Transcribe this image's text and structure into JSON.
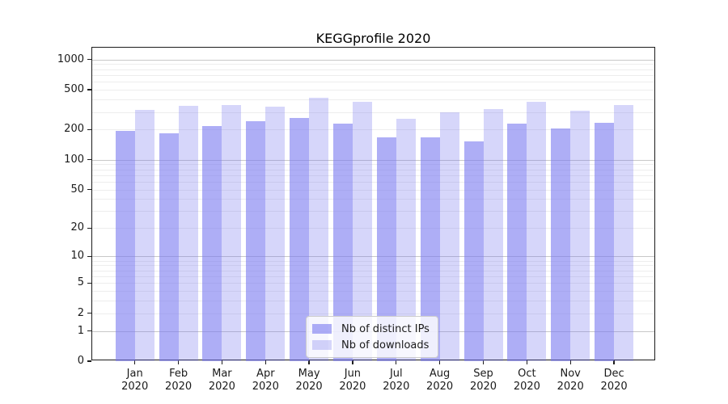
{
  "title": "KEGGprofile 2020",
  "chart_data": {
    "type": "bar",
    "title": "KEGGprofile 2020",
    "categories": [
      "Jan",
      "Feb",
      "Mar",
      "Apr",
      "May",
      "Jun",
      "Jul",
      "Aug",
      "Sep",
      "Oct",
      "Nov",
      "Dec"
    ],
    "x_tick_line2": "2020",
    "series": [
      {
        "name": "Nb of distinct IPs",
        "color": "rgba(120,120,240,0.6)",
        "values": [
          194,
          183,
          218,
          242,
          263,
          228,
          168,
          168,
          152,
          229,
          206,
          233
        ]
      },
      {
        "name": "Nb of downloads",
        "color": "rgba(120,120,240,0.3)",
        "values": [
          312,
          346,
          350,
          340,
          418,
          380,
          255,
          295,
          323,
          377,
          310,
          355
        ]
      }
    ],
    "yscale": "log1p",
    "yticks": [
      0,
      1,
      2,
      5,
      10,
      20,
      50,
      100,
      200,
      500,
      1000
    ],
    "ylim": [
      0,
      1317
    ],
    "grid": "horizontal log major+minor",
    "legend_position": "inside-bottom-center"
  }
}
